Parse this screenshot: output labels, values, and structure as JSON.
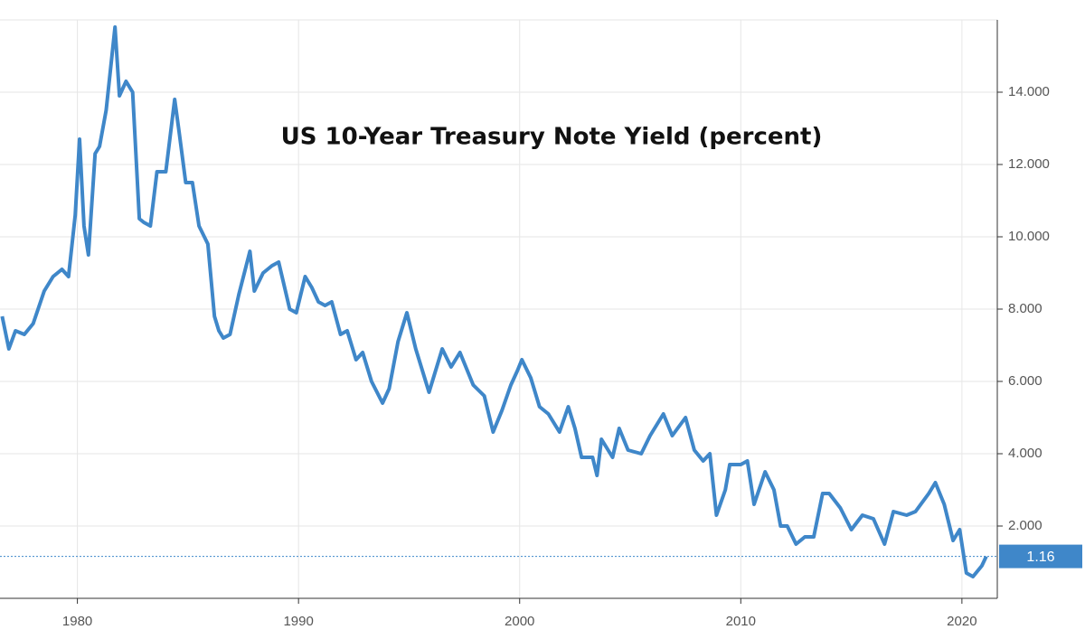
{
  "chart_data": {
    "type": "line",
    "title": "US 10-Year Treasury Note Yield (percent)",
    "x": [
      1976.6,
      1976.9,
      1977.2,
      1977.6,
      1978.0,
      1978.5,
      1978.9,
      1979.3,
      1979.6,
      1979.9,
      1980.1,
      1980.3,
      1980.5,
      1980.8,
      1981.0,
      1981.3,
      1981.7,
      1981.9,
      1982.2,
      1982.5,
      1982.8,
      1983.0,
      1983.3,
      1983.6,
      1984.0,
      1984.4,
      1984.6,
      1984.9,
      1985.2,
      1985.5,
      1985.9,
      1986.2,
      1986.4,
      1986.6,
      1986.9,
      1987.3,
      1987.8,
      1988.0,
      1988.4,
      1988.8,
      1989.1,
      1989.6,
      1989.9,
      1990.3,
      1990.6,
      1990.9,
      1991.2,
      1991.5,
      1991.9,
      1992.2,
      1992.6,
      1992.9,
      1993.3,
      1993.8,
      1994.1,
      1994.5,
      1994.9,
      1995.3,
      1995.9,
      1996.5,
      1996.9,
      1997.3,
      1997.9,
      1998.4,
      1998.8,
      1999.2,
      1999.6,
      1999.9,
      2000.1,
      2000.5,
      2000.9,
      2001.3,
      2001.8,
      2002.2,
      2002.5,
      2002.8,
      2003.3,
      2003.5,
      2003.7,
      2004.2,
      2004.5,
      2004.9,
      2005.5,
      2005.9,
      2006.5,
      2006.9,
      2007.5,
      2007.9,
      2008.3,
      2008.6,
      2008.9,
      2009.3,
      2009.5,
      2010.0,
      2010.3,
      2010.6,
      2011.1,
      2011.5,
      2011.8,
      2012.1,
      2012.5,
      2012.9,
      2013.3,
      2013.7,
      2014.0,
      2014.5,
      2015.0,
      2015.5,
      2016.0,
      2016.5,
      2016.9,
      2017.5,
      2017.9,
      2018.5,
      2018.8,
      2019.2,
      2019.6,
      2019.9,
      2020.2,
      2020.5,
      2020.9,
      2021.1
    ],
    "values": [
      7.8,
      6.9,
      7.4,
      7.3,
      7.6,
      8.5,
      8.9,
      9.1,
      8.9,
      10.6,
      12.7,
      10.3,
      9.5,
      12.3,
      12.5,
      13.5,
      15.8,
      13.9,
      14.3,
      14.0,
      10.5,
      10.4,
      10.3,
      11.8,
      11.8,
      13.8,
      12.9,
      11.5,
      11.5,
      10.3,
      9.8,
      7.8,
      7.4,
      7.2,
      7.3,
      8.4,
      9.6,
      8.5,
      9.0,
      9.2,
      9.3,
      8.0,
      7.9,
      8.9,
      8.6,
      8.2,
      8.1,
      8.2,
      7.3,
      7.4,
      6.6,
      6.8,
      6.0,
      5.4,
      5.8,
      7.1,
      7.9,
      6.9,
      5.7,
      6.9,
      6.4,
      6.8,
      5.9,
      5.6,
      4.6,
      5.2,
      5.9,
      6.3,
      6.6,
      6.1,
      5.3,
      5.1,
      4.6,
      5.3,
      4.7,
      3.9,
      3.9,
      3.4,
      4.4,
      3.9,
      4.7,
      4.1,
      4.0,
      4.5,
      5.1,
      4.5,
      5.0,
      4.1,
      3.8,
      4.0,
      2.3,
      3.0,
      3.7,
      3.7,
      3.8,
      2.6,
      3.5,
      3.0,
      2.0,
      2.0,
      1.5,
      1.7,
      1.7,
      2.9,
      2.9,
      2.5,
      1.9,
      2.3,
      2.2,
      1.5,
      2.4,
      2.3,
      2.4,
      2.9,
      3.2,
      2.6,
      1.6,
      1.9,
      0.7,
      0.6,
      0.9,
      1.16
    ],
    "color": "#3f87c9",
    "current_value": 1.16,
    "xlim": [
      1976.5,
      2021.6
    ],
    "xticks": [
      1980,
      1990,
      2000,
      2010,
      2020
    ],
    "ylim": [
      0,
      16
    ],
    "yticks": [
      {
        "value": 2,
        "label": "2.000"
      },
      {
        "value": 4,
        "label": "4.000"
      },
      {
        "value": 6,
        "label": "6.000"
      },
      {
        "value": 8,
        "label": "8.000"
      },
      {
        "value": 10,
        "label": "10.000"
      },
      {
        "value": 12,
        "label": "12.000"
      },
      {
        "value": 14,
        "label": "14.000"
      }
    ],
    "grid": true
  }
}
